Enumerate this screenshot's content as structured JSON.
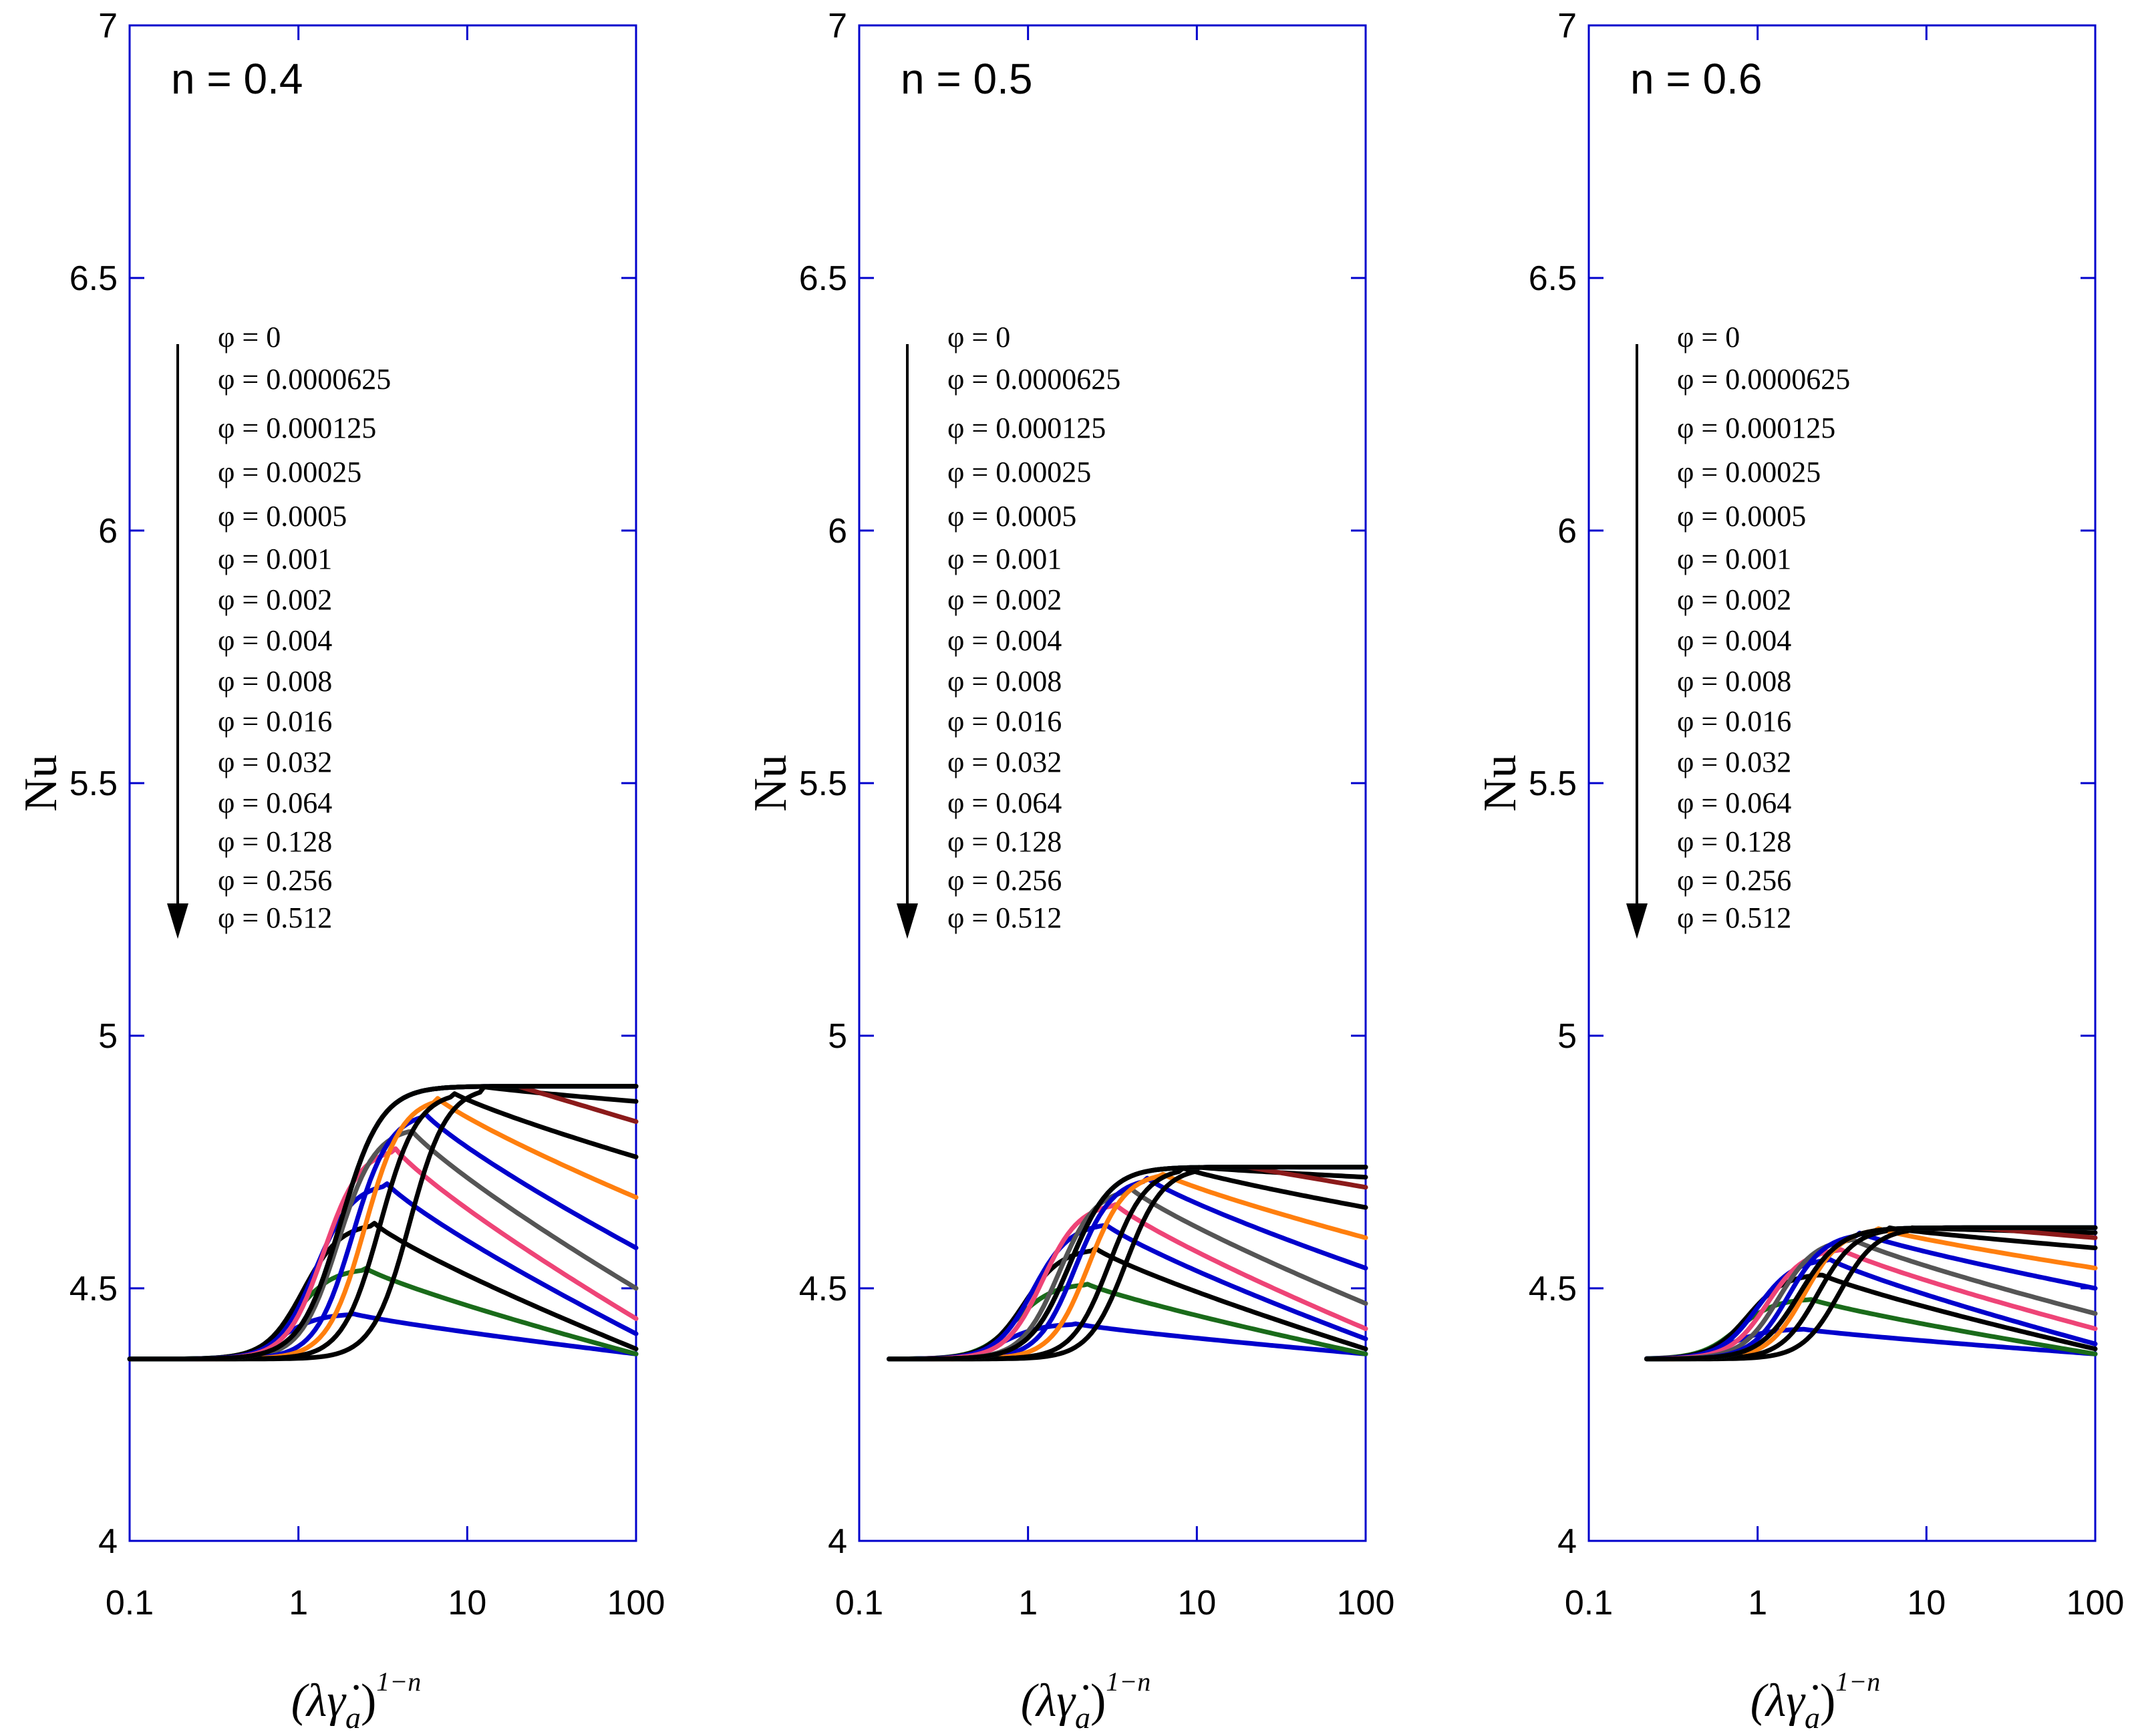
{
  "chart_data": [
    {
      "type": "line",
      "title": "n = 0.4",
      "n": 0.4,
      "xscale": "log",
      "xlim": [
        0.1,
        100
      ],
      "ylim": [
        4,
        7
      ],
      "xticks": [
        "0.1",
        "1",
        "10",
        "100"
      ],
      "yticks": [
        "4",
        "4.5",
        "5",
        "5.5",
        "6",
        "6.5",
        "7"
      ],
      "ylabel": "Nu",
      "xlabel_base": "(λγ̇",
      "xlabel_sub": "a",
      "xlabel_close": ")",
      "xlabel_exp": "1−n",
      "plateau": 4.9,
      "x_start": 0.1,
      "legend_phi": [
        "0",
        "0.0000625",
        "0.000125",
        "0.00025",
        "0.0005",
        "0.001",
        "0.002",
        "0.004",
        "0.008",
        "0.016",
        "0.032",
        "0.064",
        "0.128",
        "0.256",
        "0.512"
      ],
      "series": [
        {
          "name": "φ = 0",
          "color": "#000000",
          "end_value": 4.9
        },
        {
          "name": "φ = 0.0000625",
          "color": "#1a7a1a",
          "end_value": 4.9
        },
        {
          "name": "φ = 0.000125",
          "color": "#0000cc",
          "end_value": 4.9
        },
        {
          "name": "φ = 0.00025",
          "color": "#8b1a1a",
          "end_value": 4.83
        },
        {
          "name": "φ = 0.0005",
          "color": "#000000",
          "end_value": 4.87
        },
        {
          "name": "φ = 0.001",
          "color": "#000000",
          "end_value": 4.76
        },
        {
          "name": "φ = 0.002",
          "color": "#ff7f0e",
          "end_value": 4.68
        },
        {
          "name": "φ = 0.004",
          "color": "#0000cc",
          "end_value": 4.58
        },
        {
          "name": "φ = 0.008",
          "color": "#555555",
          "end_value": 4.5
        },
        {
          "name": "φ = 0.016",
          "color": "#ee4477",
          "end_value": 4.44
        },
        {
          "name": "φ = 0.032",
          "color": "#0000cc",
          "end_value": 4.41
        },
        {
          "name": "φ = 0.064",
          "color": "#000000",
          "end_value": 4.38
        },
        {
          "name": "φ = 0.128",
          "color": "#1a6b1a",
          "end_value": 4.37
        },
        {
          "name": "φ = 0.256",
          "color": "#0000cc",
          "end_value": 4.37
        },
        {
          "name": "φ = 0.512",
          "color": "#0000cc",
          "end_value": 4.37
        }
      ],
      "peaks": [
        {
          "phi": "0.0005",
          "x": 12,
          "value": 4.9
        },
        {
          "phi": "0.001",
          "x": 8,
          "value": 4.89
        },
        {
          "phi": "0.002",
          "x": 6.5,
          "value": 4.88
        },
        {
          "phi": "0.004",
          "x": 5.5,
          "value": 4.85
        },
        {
          "phi": "0.008",
          "x": 4.5,
          "value": 4.82
        },
        {
          "phi": "0.016",
          "x": 3.7,
          "value": 4.78
        },
        {
          "phi": "0.032",
          "x": 3.3,
          "value": 4.71
        },
        {
          "phi": "0.064",
          "x": 2.8,
          "value": 4.63
        },
        {
          "phi": "0.128",
          "x": 2.5,
          "value": 4.54
        },
        {
          "phi": "0.256",
          "x": 2.1,
          "value": 4.45
        }
      ]
    },
    {
      "type": "line",
      "title": "n = 0.5",
      "n": 0.5,
      "xscale": "log",
      "xlim": [
        0.1,
        100
      ],
      "ylim": [
        4,
        7
      ],
      "xticks": [
        "0.1",
        "1",
        "10",
        "100"
      ],
      "yticks": [
        "4",
        "4.5",
        "5",
        "5.5",
        "6",
        "6.5",
        "7"
      ],
      "ylabel": "Nu",
      "xlabel_base": "(λγ̇",
      "xlabel_sub": "a",
      "xlabel_close": ")",
      "xlabel_exp": "1−n",
      "plateau": 4.74,
      "x_start": 0.15,
      "legend_phi": [
        "0",
        "0.0000625",
        "0.000125",
        "0.00025",
        "0.0005",
        "0.001",
        "0.002",
        "0.004",
        "0.008",
        "0.016",
        "0.032",
        "0.064",
        "0.128",
        "0.256",
        "0.512"
      ],
      "series": [
        {
          "name": "φ = 0",
          "color": "#000000",
          "end_value": 4.74
        },
        {
          "name": "φ = 0.0000625",
          "color": "#1a7a1a",
          "end_value": 4.74
        },
        {
          "name": "φ = 0.000125",
          "color": "#0000cc",
          "end_value": 4.73
        },
        {
          "name": "φ = 0.00025",
          "color": "#8b1a1a",
          "end_value": 4.7
        },
        {
          "name": "φ = 0.0005",
          "color": "#000000",
          "end_value": 4.72
        },
        {
          "name": "φ = 0.001",
          "color": "#000000",
          "end_value": 4.66
        },
        {
          "name": "φ = 0.002",
          "color": "#ff7f0e",
          "end_value": 4.6
        },
        {
          "name": "φ = 0.004",
          "color": "#0000cc",
          "end_value": 4.54
        },
        {
          "name": "φ = 0.008",
          "color": "#555555",
          "end_value": 4.47
        },
        {
          "name": "φ = 0.016",
          "color": "#ee4477",
          "end_value": 4.42
        },
        {
          "name": "φ = 0.032",
          "color": "#0000cc",
          "end_value": 4.4
        },
        {
          "name": "φ = 0.064",
          "color": "#000000",
          "end_value": 4.38
        },
        {
          "name": "φ = 0.128",
          "color": "#1a6b1a",
          "end_value": 4.37
        },
        {
          "name": "φ = 0.256",
          "color": "#0000cc",
          "end_value": 4.37
        },
        {
          "name": "φ = 0.512",
          "color": "#0000cc",
          "end_value": 4.37
        }
      ],
      "peaks": [
        {
          "phi": "0.0005",
          "x": 10,
          "value": 4.74
        },
        {
          "phi": "0.001",
          "x": 8,
          "value": 4.74
        },
        {
          "phi": "0.002",
          "x": 6,
          "value": 4.73
        },
        {
          "phi": "0.004",
          "x": 5,
          "value": 4.72
        },
        {
          "phi": "0.008",
          "x": 4,
          "value": 4.7
        },
        {
          "phi": "0.016",
          "x": 3.2,
          "value": 4.67
        },
        {
          "phi": "0.032",
          "x": 2.8,
          "value": 4.63
        },
        {
          "phi": "0.064",
          "x": 2.5,
          "value": 4.58
        },
        {
          "phi": "0.128",
          "x": 2.2,
          "value": 4.51
        },
        {
          "phi": "0.256",
          "x": 1.9,
          "value": 4.43
        }
      ]
    },
    {
      "type": "line",
      "title": "n = 0.6",
      "n": 0.6,
      "xscale": "log",
      "xlim": [
        0.1,
        100
      ],
      "ylim": [
        4,
        7
      ],
      "xticks": [
        "0.1",
        "1",
        "10",
        "100"
      ],
      "yticks": [
        "4",
        "4.5",
        "5",
        "5.5",
        "6",
        "6.5",
        "7"
      ],
      "ylabel": "Nu",
      "xlabel_base": "(λγ̇",
      "xlabel_sub": "a",
      "xlabel_close": ")",
      "xlabel_exp": "1−n",
      "plateau": 4.62,
      "x_start": 0.22,
      "legend_phi": [
        "0",
        "0.0000625",
        "0.000125",
        "0.00025",
        "0.0005",
        "0.001",
        "0.002",
        "0.004",
        "0.008",
        "0.016",
        "0.032",
        "0.064",
        "0.128",
        "0.256",
        "0.512"
      ],
      "series": [
        {
          "name": "φ = 0",
          "color": "#000000",
          "end_value": 4.62
        },
        {
          "name": "φ = 0.0000625",
          "color": "#1a7a1a",
          "end_value": 4.62
        },
        {
          "name": "φ = 0.000125",
          "color": "#0000cc",
          "end_value": 4.62
        },
        {
          "name": "φ = 0.00025",
          "color": "#8b1a1a",
          "end_value": 4.6
        },
        {
          "name": "φ = 0.0005",
          "color": "#000000",
          "end_value": 4.61
        },
        {
          "name": "φ = 0.001",
          "color": "#000000",
          "end_value": 4.58
        },
        {
          "name": "φ = 0.002",
          "color": "#ff7f0e",
          "end_value": 4.54
        },
        {
          "name": "φ = 0.004",
          "color": "#0000cc",
          "end_value": 4.5
        },
        {
          "name": "φ = 0.008",
          "color": "#555555",
          "end_value": 4.45
        },
        {
          "name": "φ = 0.016",
          "color": "#ee4477",
          "end_value": 4.42
        },
        {
          "name": "φ = 0.032",
          "color": "#0000cc",
          "end_value": 4.39
        },
        {
          "name": "φ = 0.064",
          "color": "#000000",
          "end_value": 4.38
        },
        {
          "name": "φ = 0.128",
          "color": "#1a6b1a",
          "end_value": 4.37
        },
        {
          "name": "φ = 0.256",
          "color": "#0000cc",
          "end_value": 4.37
        },
        {
          "name": "φ = 0.512",
          "color": "#0000cc",
          "end_value": 4.37
        }
      ],
      "peaks": [
        {
          "phi": "0.0005",
          "x": 8,
          "value": 4.62
        },
        {
          "phi": "0.001",
          "x": 6,
          "value": 4.62
        },
        {
          "phi": "0.002",
          "x": 5,
          "value": 4.62
        },
        {
          "phi": "0.004",
          "x": 4,
          "value": 4.61
        },
        {
          "phi": "0.008",
          "x": 3.5,
          "value": 4.6
        },
        {
          "phi": "0.016",
          "x": 3,
          "value": 4.58
        },
        {
          "phi": "0.032",
          "x": 2.6,
          "value": 4.56
        },
        {
          "phi": "0.064",
          "x": 2.3,
          "value": 4.53
        },
        {
          "phi": "0.128",
          "x": 2,
          "value": 4.48
        },
        {
          "phi": "0.256",
          "x": 1.8,
          "value": 4.42
        }
      ]
    }
  ],
  "styles": {
    "frame_color": "#0000cc",
    "arrow_color": "#000000",
    "base_value": 4.36,
    "legend_prefix": "φ = "
  }
}
